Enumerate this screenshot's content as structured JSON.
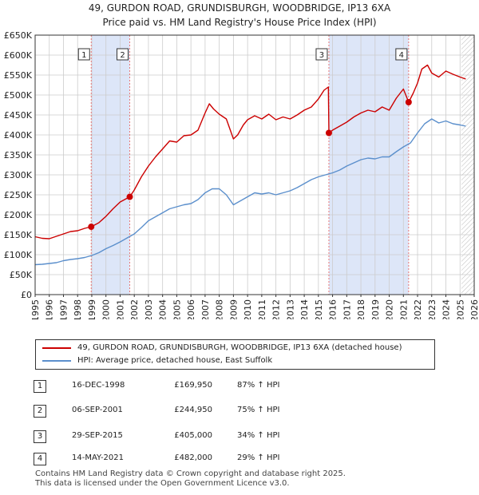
{
  "title_line1": "49, GURDON ROAD, GRUNDISBURGH, WOODBRIDGE, IP13 6XA",
  "title_line2": "Price paid vs. HM Land Registry's House Price Index (HPI)",
  "colors": {
    "property": "#cc0000",
    "hpi": "#5b8fcc",
    "shade": "#dde6f8",
    "grid": "#cccccc",
    "vline": "#e87878"
  },
  "chart_data": {
    "type": "line",
    "title": "Price paid vs. HM Land Registry's House Price Index (HPI)",
    "xlim": [
      1995,
      2026
    ],
    "ylim": [
      0,
      650000
    ],
    "x_ticks": [
      "1995",
      "1996",
      "1997",
      "1998",
      "1999",
      "2000",
      "2001",
      "2002",
      "2003",
      "2004",
      "2005",
      "2006",
      "2007",
      "2008",
      "2009",
      "2010",
      "2011",
      "2012",
      "2013",
      "2014",
      "2015",
      "2016",
      "2017",
      "2018",
      "2019",
      "2020",
      "2021",
      "2022",
      "2023",
      "2024",
      "2025",
      "2026"
    ],
    "y_ticks": [
      {
        "value": 0,
        "label": "£0"
      },
      {
        "value": 50000,
        "label": "£50K"
      },
      {
        "value": 100000,
        "label": "£100K"
      },
      {
        "value": 150000,
        "label": "£150K"
      },
      {
        "value": 200000,
        "label": "£200K"
      },
      {
        "value": 250000,
        "label": "£250K"
      },
      {
        "value": 300000,
        "label": "£300K"
      },
      {
        "value": 350000,
        "label": "£350K"
      },
      {
        "value": 400000,
        "label": "£400K"
      },
      {
        "value": 450000,
        "label": "£450K"
      },
      {
        "value": 500000,
        "label": "£500K"
      },
      {
        "value": 550000,
        "label": "£550K"
      },
      {
        "value": 600000,
        "label": "£600K"
      },
      {
        "value": 650000,
        "label": "£650K"
      }
    ],
    "shaded_ranges": [
      [
        1998.96,
        2001.68
      ],
      [
        2015.74,
        2021.37
      ]
    ],
    "future_hatch_from": 2025.1,
    "series": [
      {
        "name": "49, GURDON ROAD, GRUNDISBURGH, WOODBRIDGE, IP13 6XA (detached house)",
        "x": [
          1995,
          1995.5,
          1996,
          1996.5,
          1997,
          1997.5,
          1998,
          1998.5,
          1998.96,
          1999.5,
          2000,
          2000.5,
          2001,
          2001.68,
          2002,
          2002.5,
          2003,
          2003.5,
          2004,
          2004.5,
          2005,
          2005.5,
          2006,
          2006.5,
          2007,
          2007.3,
          2007.6,
          2008,
          2008.5,
          2009,
          2009.3,
          2009.7,
          2010,
          2010.5,
          2011,
          2011.5,
          2012,
          2012.5,
          2013,
          2013.5,
          2014,
          2014.5,
          2015,
          2015.4,
          2015.7,
          2015.74,
          2016,
          2016.5,
          2017,
          2017.5,
          2018,
          2018.5,
          2019,
          2019.5,
          2020,
          2020.5,
          2021,
          2021.37,
          2021.7,
          2022,
          2022.3,
          2022.7,
          2023,
          2023.5,
          2024,
          2024.5,
          2025,
          2025.4
        ],
        "y": [
          145000,
          141000,
          140000,
          146000,
          152000,
          158000,
          160000,
          166000,
          169950,
          180000,
          196000,
          215000,
          232000,
          244950,
          262000,
          295000,
          322000,
          345000,
          365000,
          385000,
          382000,
          398000,
          400000,
          412000,
          455000,
          478000,
          465000,
          452000,
          440000,
          390000,
          400000,
          425000,
          438000,
          448000,
          440000,
          452000,
          438000,
          445000,
          440000,
          450000,
          462000,
          470000,
          490000,
          512000,
          520000,
          405000,
          412000,
          422000,
          432000,
          445000,
          455000,
          462000,
          458000,
          470000,
          462000,
          492000,
          515000,
          482000,
          505000,
          530000,
          565000,
          575000,
          555000,
          545000,
          560000,
          552000,
          545000,
          540000
        ]
      },
      {
        "name": "HPI: Average price, detached house, East Suffolk",
        "x": [
          1995,
          1995.5,
          1996,
          1996.5,
          1997,
          1997.5,
          1998,
          1998.5,
          1999,
          1999.5,
          2000,
          2000.5,
          2001,
          2001.5,
          2002,
          2002.5,
          2003,
          2003.5,
          2004,
          2004.5,
          2005,
          2005.5,
          2006,
          2006.5,
          2007,
          2007.5,
          2008,
          2008.5,
          2009,
          2009.5,
          2010,
          2010.5,
          2011,
          2011.5,
          2012,
          2012.5,
          2013,
          2013.5,
          2014,
          2014.5,
          2015,
          2015.5,
          2016,
          2016.5,
          2017,
          2017.5,
          2018,
          2018.5,
          2019,
          2019.5,
          2020,
          2020.5,
          2021,
          2021.5,
          2022,
          2022.5,
          2023,
          2023.5,
          2024,
          2024.5,
          2025,
          2025.4
        ],
        "y": [
          75000,
          76000,
          78000,
          80000,
          85000,
          88000,
          90000,
          93000,
          98000,
          105000,
          115000,
          123000,
          132000,
          142000,
          152000,
          168000,
          185000,
          195000,
          205000,
          215000,
          220000,
          225000,
          228000,
          238000,
          255000,
          265000,
          265000,
          250000,
          225000,
          235000,
          245000,
          255000,
          252000,
          255000,
          250000,
          255000,
          260000,
          268000,
          278000,
          288000,
          295000,
          300000,
          305000,
          312000,
          322000,
          330000,
          338000,
          342000,
          340000,
          345000,
          345000,
          358000,
          370000,
          380000,
          405000,
          428000,
          440000,
          430000,
          435000,
          428000,
          425000,
          422000
        ]
      }
    ],
    "markers": [
      {
        "label": "1",
        "x": 1998.96,
        "y": 169950
      },
      {
        "label": "2",
        "x": 2001.68,
        "y": 244950
      },
      {
        "label": "3",
        "x": 2015.74,
        "y": 405000
      },
      {
        "label": "4",
        "x": 2021.37,
        "y": 482000
      }
    ]
  },
  "legend": {
    "property": "49, GURDON ROAD, GRUNDISBURGH, WOODBRIDGE, IP13 6XA (detached house)",
    "hpi": "HPI: Average price, detached house, East Suffolk"
  },
  "sales": [
    {
      "num": "1",
      "date": "16-DEC-1998",
      "price": "£169,950",
      "hpi": "87% ↑ HPI"
    },
    {
      "num": "2",
      "date": "06-SEP-2001",
      "price": "£244,950",
      "hpi": "75% ↑ HPI"
    },
    {
      "num": "3",
      "date": "29-SEP-2015",
      "price": "£405,000",
      "hpi": "34% ↑ HPI"
    },
    {
      "num": "4",
      "date": "14-MAY-2021",
      "price": "£482,000",
      "hpi": "29% ↑ HPI"
    }
  ],
  "footer_line1": "Contains HM Land Registry data © Crown copyright and database right 2025.",
  "footer_line2": "This data is licensed under the Open Government Licence v3.0."
}
